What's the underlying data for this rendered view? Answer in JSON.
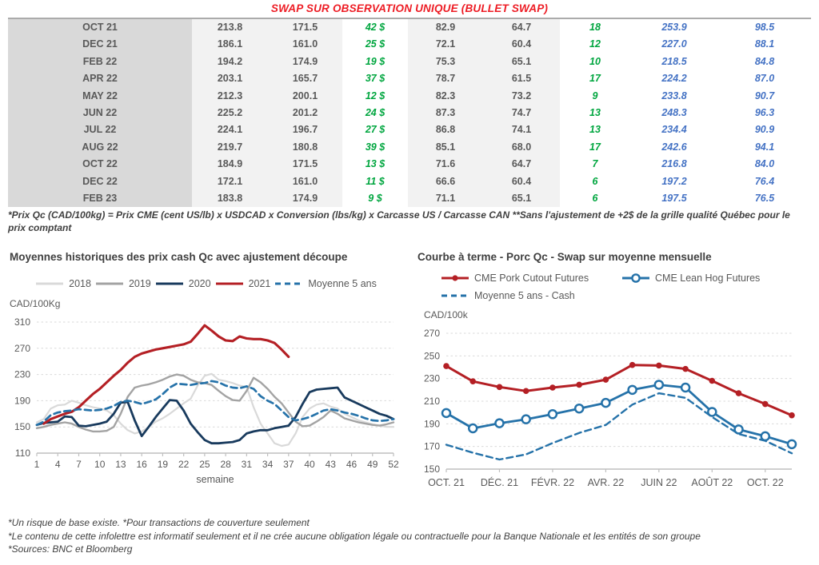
{
  "title": "SWAP SUR OBSERVATION UNIQUE (BULLET SWAP)",
  "table": {
    "rows": [
      [
        "OCT 21",
        "213.8",
        "171.5",
        "42 $",
        "82.9",
        "64.7",
        "18",
        "253.9",
        "98.5"
      ],
      [
        "DEC 21",
        "186.1",
        "161.0",
        "25 $",
        "72.1",
        "60.4",
        "12",
        "227.0",
        "88.1"
      ],
      [
        "FEB 22",
        "194.2",
        "174.9",
        "19 $",
        "75.3",
        "65.1",
        "10",
        "218.5",
        "84.8"
      ],
      [
        "APR 22",
        "203.1",
        "165.7",
        "37 $",
        "78.7",
        "61.5",
        "17",
        "224.2",
        "87.0"
      ],
      [
        "MAY 22",
        "212.3",
        "200.1",
        "12 $",
        "82.3",
        "73.2",
        "9",
        "233.8",
        "90.7"
      ],
      [
        "JUN 22",
        "225.2",
        "201.2",
        "24 $",
        "87.3",
        "74.7",
        "13",
        "248.3",
        "96.3"
      ],
      [
        "JUL 22",
        "224.1",
        "196.7",
        "27 $",
        "86.8",
        "74.1",
        "13",
        "234.4",
        "90.9"
      ],
      [
        "AUG 22",
        "219.7",
        "180.8",
        "39 $",
        "85.1",
        "68.0",
        "17",
        "242.6",
        "94.1"
      ],
      [
        "OCT 22",
        "184.9",
        "171.5",
        "13 $",
        "71.6",
        "64.7",
        "7",
        "216.8",
        "84.0"
      ],
      [
        "DEC 22",
        "172.1",
        "161.0",
        "11 $",
        "66.6",
        "60.4",
        "6",
        "197.2",
        "76.4"
      ],
      [
        "FEB 23",
        "183.8",
        "174.9",
        "9 $",
        "71.1",
        "65.1",
        "6",
        "197.5",
        "76.5"
      ]
    ]
  },
  "table_footnote": "*Prix Qc (CAD/100kg) = Prix CME (cent US/lb) x USDCAD x Conversion (lbs/kg) x Carcasse US / Carcasse CAN **Sans l'ajustement de +2$ de la grille qualité Québec pour le prix comptant",
  "footer_lines": [
    "*Un risque de base existe. *Pour transactions de couverture seulement",
    "*Le contenu de cette infolettre est informatif seulement et il ne crée aucune obligation légale ou contractuelle pour la Banque Nationale et les entités de son groupe",
    "*Sources: BNC et Bloomberg"
  ],
  "colors": {
    "title_red": "#ed1c24",
    "green_value": "#00a63f",
    "blue_value": "#4472c4",
    "series_red": "#b41f24",
    "series_navy": "#183a5d",
    "series_blue": "#2572a9"
  },
  "chart_data": [
    {
      "type": "line",
      "title": "Moyennes historiques des prix cash Qc avec ajustement découpe",
      "y_unit": "CAD/100Kg",
      "xlabel": "semaine",
      "xticks": [
        1,
        4,
        7,
        10,
        13,
        16,
        19,
        22,
        25,
        28,
        31,
        34,
        37,
        40,
        43,
        46,
        49,
        52
      ],
      "ylim": [
        110,
        310
      ],
      "yticks": [
        110,
        150,
        190,
        230,
        270,
        310
      ],
      "x_range": [
        1,
        52
      ],
      "grid": "dashed-horizontal",
      "legend_position": "top",
      "series": [
        {
          "name": "2018",
          "color": "#d9d9d9",
          "style": "solid",
          "marker": "none",
          "values": [
            157,
            162,
            178,
            183,
            184,
            190,
            187,
            183,
            180,
            178,
            175,
            168,
            155,
            145,
            140,
            143,
            150,
            158,
            163,
            170,
            178,
            186,
            193,
            213,
            228,
            231,
            222,
            220,
            217,
            213,
            211,
            180,
            155,
            140,
            125,
            121,
            123,
            140,
            165,
            178,
            184,
            186,
            181,
            178,
            170,
            165,
            160,
            157,
            154,
            152,
            150,
            150
          ]
        },
        {
          "name": "2019",
          "color": "#a3a3a3",
          "style": "solid",
          "marker": "none",
          "values": [
            148,
            150,
            153,
            155,
            157,
            155,
            150,
            146,
            143,
            143,
            144,
            150,
            170,
            196,
            210,
            213,
            215,
            218,
            222,
            227,
            230,
            228,
            222,
            218,
            217,
            214,
            205,
            197,
            191,
            190,
            205,
            225,
            218,
            208,
            196,
            186,
            172,
            158,
            151,
            152,
            158,
            165,
            175,
            170,
            163,
            160,
            157,
            155,
            153,
            152,
            154,
            157
          ]
        },
        {
          "name": "2020",
          "color": "#183a5d",
          "style": "solid",
          "marker": "none",
          "values": [
            153,
            156,
            157,
            158,
            166,
            165,
            152,
            151,
            153,
            155,
            158,
            170,
            187,
            188,
            160,
            136,
            150,
            165,
            178,
            191,
            190,
            175,
            155,
            142,
            130,
            125,
            125,
            126,
            127,
            130,
            140,
            143,
            145,
            145,
            148,
            150,
            152,
            165,
            185,
            203,
            207,
            208,
            209,
            210,
            195,
            190,
            185,
            180,
            175,
            170,
            167,
            162
          ]
        },
        {
          "name": "2021",
          "color": "#b41f24",
          "style": "solid",
          "marker": "none",
          "values": [
            null,
            155,
            162,
            166,
            170,
            173,
            180,
            190,
            200,
            208,
            218,
            228,
            237,
            248,
            257,
            262,
            265,
            268,
            270,
            272,
            274,
            276,
            280,
            292,
            305,
            297,
            288,
            282,
            281,
            288,
            285,
            284,
            284,
            282,
            278,
            268,
            257,
            null,
            null,
            null,
            null,
            null,
            null,
            null,
            null,
            null,
            null,
            null,
            null,
            null,
            null,
            null
          ]
        },
        {
          "name": "Moyenne 5 ans",
          "color": "#2572a9",
          "style": "dashed",
          "marker": "none",
          "values": [
            153,
            158,
            168,
            172,
            174,
            175,
            177,
            176,
            175,
            176,
            178,
            182,
            188,
            190,
            188,
            185,
            188,
            192,
            200,
            210,
            216,
            215,
            214,
            216,
            217,
            220,
            218,
            213,
            210,
            209,
            212,
            208,
            197,
            190,
            185,
            175,
            165,
            160,
            162,
            165,
            170,
            175,
            177,
            175,
            172,
            170,
            167,
            163,
            160,
            159,
            160,
            162
          ]
        }
      ]
    },
    {
      "type": "line",
      "title": "Courbe à terme - Porc Qc - Swap sur moyenne mensuelle",
      "y_unit": "CAD/100k",
      "xlabel": "",
      "x_tick_indices": [
        0,
        2,
        4,
        6,
        8,
        10,
        12
      ],
      "x_tick_labels": [
        "OCT. 21",
        "DÉC. 21",
        "FÉVR. 22",
        "AVR. 22",
        "JUIN 22",
        "AOÛT 22",
        "OCT. 22"
      ],
      "ylim": [
        150,
        270
      ],
      "yticks": [
        150,
        170,
        190,
        210,
        230,
        250,
        270
      ],
      "x_range": [
        0,
        13
      ],
      "grid": "dashed-horizontal",
      "legend_position": "top",
      "series": [
        {
          "name": "CME Pork Cutout Futures",
          "color": "#b41f24",
          "style": "solid",
          "marker": "filled",
          "values": [
            241,
            227.5,
            222.5,
            219,
            222,
            224.5,
            229,
            242,
            241.5,
            238.5,
            228,
            217,
            207.5,
            197.5
          ]
        },
        {
          "name": "CME Lean Hog Futures",
          "color": "#2572a9",
          "style": "solid",
          "marker": "open",
          "values": [
            199.5,
            186,
            190.5,
            194,
            198.5,
            203.5,
            208.5,
            220,
            224.5,
            222,
            200.5,
            185,
            179,
            172
          ]
        },
        {
          "name": "Moyenne 5 ans - Cash",
          "color": "#2572a9",
          "style": "dashed",
          "marker": "none",
          "values": [
            171.5,
            164.5,
            158.5,
            163,
            173,
            182,
            189,
            207,
            217,
            213,
            196,
            181,
            175,
            164
          ]
        }
      ]
    }
  ]
}
